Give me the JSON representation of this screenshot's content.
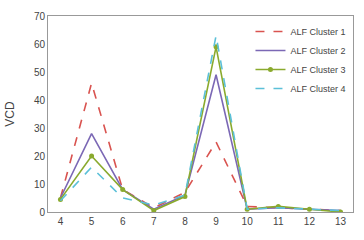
{
  "chart_data": {
    "type": "line",
    "y_label": "VCD",
    "x": [
      4,
      5,
      6,
      7,
      8,
      9,
      10,
      11,
      12,
      13
    ],
    "series": [
      {
        "name": "ALF Cluster 1",
        "color": "#d9534f",
        "line_style": "dashed",
        "values": [
          5,
          46,
          8,
          1.5,
          7,
          25,
          2,
          1.5,
          1,
          0.5
        ]
      },
      {
        "name": "ALF Cluster 2",
        "color": "#7b68b5",
        "line_style": "solid",
        "values": [
          5,
          28,
          8,
          1,
          6,
          49,
          1,
          1.5,
          1,
          0.5
        ]
      },
      {
        "name": "ALF Cluster 3",
        "color": "#8aaa2e",
        "line_style": "solid",
        "marker": "circle",
        "values": [
          4.5,
          20,
          8,
          0.5,
          5.5,
          59,
          1,
          2,
          1,
          0
        ]
      },
      {
        "name": "ALF Cluster 4",
        "color": "#5bc0d8",
        "line_style": "dashed",
        "values": [
          4,
          16,
          5,
          2.5,
          6,
          63,
          1,
          1.5,
          1,
          0.5
        ]
      }
    ],
    "xlim": [
      3.6,
      13.4
    ],
    "ylim": [
      0,
      70
    ],
    "xticks": [
      4,
      5,
      6,
      7,
      8,
      9,
      10,
      11,
      12,
      13
    ],
    "yticks": [
      0,
      10,
      20,
      30,
      40,
      50,
      60,
      70
    ],
    "grid": false,
    "legend": "upper right"
  }
}
